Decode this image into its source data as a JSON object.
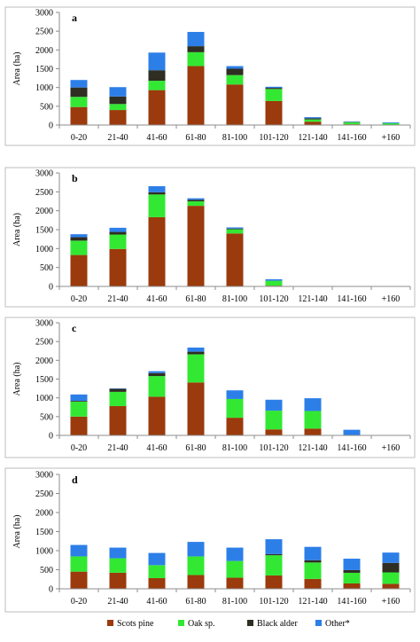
{
  "colors": {
    "scots_pine": "#9b3a0c",
    "oak": "#33e833",
    "black_alder": "#2e2e22",
    "other": "#2d7fe8"
  },
  "legend": [
    "Scots pine",
    "Oak sp.",
    "Black alder",
    "Other*"
  ],
  "chart_data": [
    {
      "type": "bar",
      "stacked": true,
      "panel_label": "a",
      "ylabel": "Area (ha)",
      "ylim": [
        0,
        3000
      ],
      "yticks": [
        0,
        500,
        1000,
        1500,
        2000,
        2500,
        3000
      ],
      "categories": [
        "0-20",
        "21-40",
        "41-60",
        "61-80",
        "81-100",
        "101-120",
        "121-140",
        "141-160",
        "+160"
      ],
      "series": [
        {
          "name": "Scots pine",
          "values": [
            480,
            400,
            930,
            1570,
            1080,
            640,
            90,
            20,
            0
          ]
        },
        {
          "name": "Oak sp.",
          "values": [
            270,
            160,
            250,
            370,
            250,
            320,
            60,
            50,
            50
          ]
        },
        {
          "name": "Black alder",
          "values": [
            250,
            200,
            280,
            160,
            170,
            30,
            30,
            10,
            0
          ]
        },
        {
          "name": "Other*",
          "values": [
            200,
            250,
            470,
            380,
            70,
            30,
            30,
            10,
            20
          ]
        }
      ]
    },
    {
      "type": "bar",
      "stacked": true,
      "panel_label": "b",
      "ylabel": "Area (ha)",
      "ylim": [
        0,
        3000
      ],
      "yticks": [
        0,
        500,
        1000,
        1500,
        2000,
        2500,
        3000
      ],
      "categories": [
        "0-20",
        "21-40",
        "41-60",
        "61-80",
        "81-100",
        "101-120",
        "121-140",
        "141-160",
        "+160"
      ],
      "series": [
        {
          "name": "Scots pine",
          "values": [
            830,
            990,
            1830,
            2130,
            1400,
            20,
            0,
            0,
            0
          ]
        },
        {
          "name": "Oak sp.",
          "values": [
            380,
            380,
            600,
            120,
            110,
            130,
            0,
            0,
            0
          ]
        },
        {
          "name": "Black alder",
          "values": [
            90,
            70,
            60,
            40,
            20,
            0,
            0,
            0,
            0
          ]
        },
        {
          "name": "Other*",
          "values": [
            80,
            110,
            160,
            40,
            30,
            40,
            0,
            0,
            0
          ]
        }
      ]
    },
    {
      "type": "bar",
      "stacked": true,
      "panel_label": "c",
      "ylabel": "Area (ha)",
      "ylim": [
        0,
        3000
      ],
      "yticks": [
        0,
        500,
        1000,
        1500,
        2000,
        2500,
        3000
      ],
      "categories": [
        "0-20",
        "21-40",
        "41-60",
        "61-80",
        "81-100",
        "101-120",
        "121-140",
        "141-160",
        "+160"
      ],
      "series": [
        {
          "name": "Scots pine",
          "values": [
            500,
            780,
            1030,
            1410,
            470,
            160,
            180,
            0,
            0
          ]
        },
        {
          "name": "Oak sp.",
          "values": [
            400,
            380,
            550,
            750,
            500,
            500,
            470,
            0,
            0
          ]
        },
        {
          "name": "Black alder",
          "values": [
            20,
            80,
            80,
            70,
            0,
            0,
            0,
            0,
            0
          ]
        },
        {
          "name": "Other*",
          "values": [
            170,
            10,
            50,
            110,
            230,
            290,
            340,
            150,
            0
          ]
        }
      ]
    },
    {
      "type": "bar",
      "stacked": true,
      "panel_label": "d",
      "ylabel": "Area (ha)",
      "ylim": [
        0,
        3000
      ],
      "yticks": [
        0,
        500,
        1000,
        1500,
        2000,
        2500,
        3000
      ],
      "categories": [
        "0-20",
        "21-40",
        "41-60",
        "61-80",
        "81-100",
        "101-120",
        "121-140",
        "141-160",
        "+160"
      ],
      "series": [
        {
          "name": "Scots pine",
          "values": [
            450,
            420,
            280,
            360,
            290,
            350,
            260,
            140,
            130
          ]
        },
        {
          "name": "Oak sp.",
          "values": [
            400,
            380,
            340,
            490,
            440,
            530,
            430,
            280,
            300
          ]
        },
        {
          "name": "Black alder",
          "values": [
            0,
            0,
            0,
            0,
            0,
            30,
            60,
            70,
            250
          ]
        },
        {
          "name": "Other*",
          "values": [
            300,
            280,
            320,
            380,
            350,
            390,
            350,
            300,
            270
          ]
        }
      ]
    }
  ]
}
